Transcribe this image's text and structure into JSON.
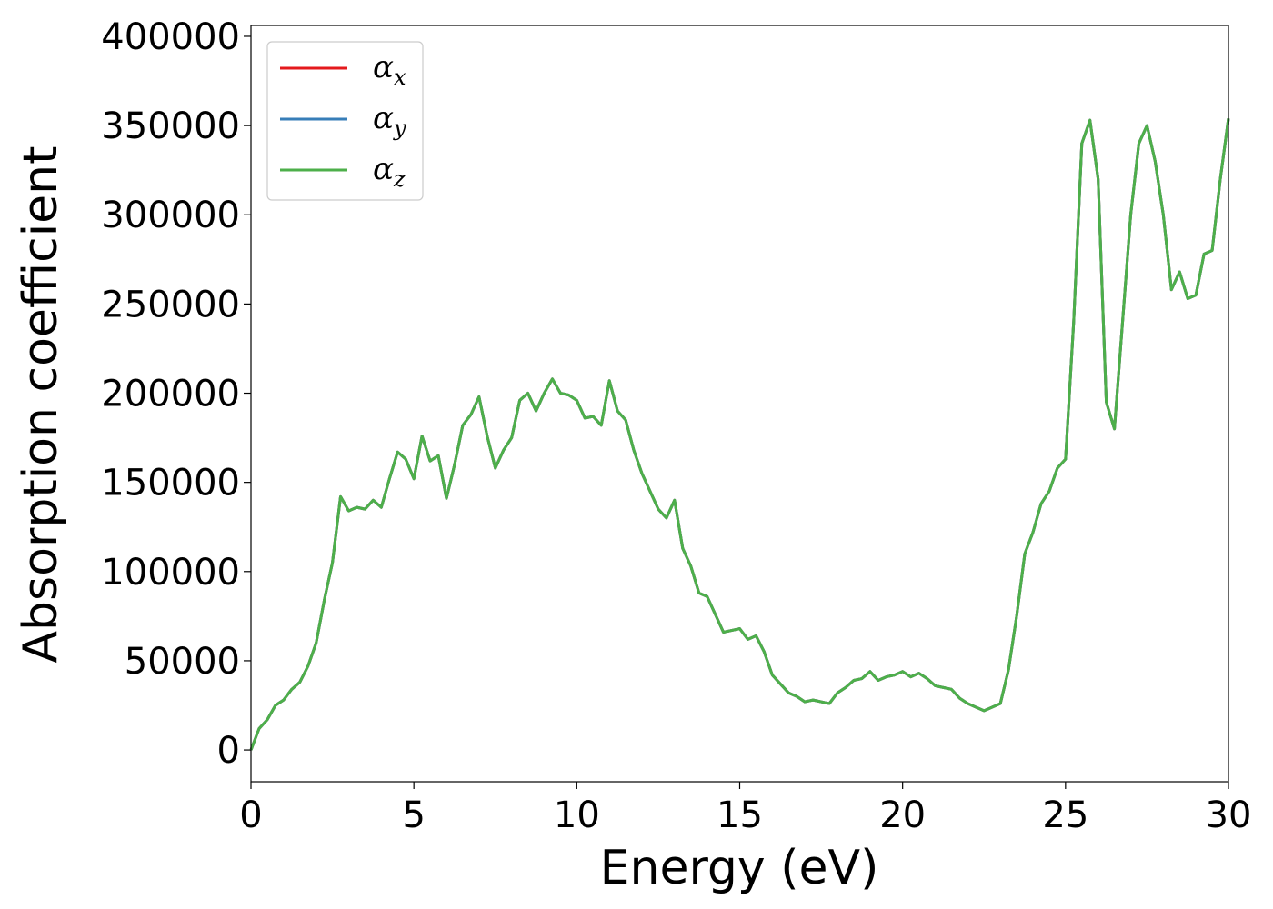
{
  "chart_data": {
    "type": "line",
    "xlabel": "Energy (eV)",
    "ylabel": "Absorption coefficient",
    "x": [
      0,
      0.25,
      0.5,
      0.75,
      1,
      1.25,
      1.5,
      1.75,
      2,
      2.25,
      2.5,
      2.75,
      3,
      3.25,
      3.5,
      3.75,
      4,
      4.25,
      4.5,
      4.75,
      5,
      5.25,
      5.5,
      5.75,
      6,
      6.25,
      6.5,
      6.75,
      7,
      7.25,
      7.5,
      7.75,
      8,
      8.25,
      8.5,
      8.75,
      9,
      9.25,
      9.5,
      9.75,
      10,
      10.25,
      10.5,
      10.75,
      11,
      11.25,
      11.5,
      11.75,
      12,
      12.25,
      12.5,
      12.75,
      13,
      13.25,
      13.5,
      13.75,
      14,
      14.25,
      14.5,
      14.75,
      15,
      15.25,
      15.5,
      15.75,
      16,
      16.25,
      16.5,
      16.75,
      17,
      17.25,
      17.5,
      17.75,
      18,
      18.25,
      18.5,
      18.75,
      19,
      19.25,
      19.5,
      19.75,
      20,
      20.25,
      20.5,
      20.75,
      21,
      21.25,
      21.5,
      21.75,
      22,
      22.25,
      22.5,
      22.75,
      23,
      23.25,
      23.5,
      23.75,
      24,
      24.25,
      24.5,
      24.75,
      25,
      25.25,
      25.5,
      25.75,
      26,
      26.25,
      26.5,
      26.75,
      27,
      27.25,
      27.5,
      27.75,
      28,
      28.25,
      28.5,
      28.75,
      29,
      29.25,
      29.5,
      29.75,
      30
    ],
    "series": [
      {
        "name": "αx",
        "color": "#e41a1c",
        "values": [
          0,
          12000,
          17000,
          25000,
          28000,
          34000,
          38000,
          47000,
          60000,
          84000,
          105000,
          142000,
          134000,
          136000,
          135000,
          140000,
          136000,
          152000,
          167000,
          163000,
          152000,
          176000,
          162000,
          165000,
          141000,
          160000,
          182000,
          188000,
          198000,
          176000,
          158000,
          168000,
          175000,
          196000,
          200000,
          190000,
          200000,
          208000,
          200000,
          199000,
          196000,
          186000,
          187000,
          182000,
          207000,
          190000,
          185000,
          168000,
          155000,
          145000,
          135000,
          130000,
          140000,
          113000,
          103000,
          88000,
          86000,
          76000,
          66000,
          67000,
          68000,
          62000,
          64000,
          55000,
          42000,
          37000,
          32000,
          30000,
          27000,
          28000,
          27000,
          26000,
          32000,
          35000,
          39000,
          40000,
          44000,
          39000,
          41000,
          42000,
          44000,
          41000,
          43000,
          40000,
          36000,
          35000,
          34000,
          29000,
          26000,
          24000,
          22000,
          24000,
          26000,
          45000,
          75000,
          110000,
          122000,
          138000,
          145000,
          158000,
          163000,
          240000,
          340000,
          353000,
          320000,
          195000,
          180000,
          240000,
          300000,
          340000,
          350000,
          330000,
          300000,
          258000,
          268000,
          253000,
          255000,
          278000,
          280000,
          320000,
          354000
        ]
      },
      {
        "name": "αy",
        "color": "#377eb8",
        "values": [
          0,
          12000,
          17000,
          25000,
          28000,
          34000,
          38000,
          47000,
          60000,
          84000,
          105000,
          142000,
          134000,
          136000,
          135000,
          140000,
          136000,
          152000,
          167000,
          163000,
          152000,
          176000,
          162000,
          165000,
          141000,
          160000,
          182000,
          188000,
          198000,
          176000,
          158000,
          168000,
          175000,
          196000,
          200000,
          190000,
          200000,
          208000,
          200000,
          199000,
          196000,
          186000,
          187000,
          182000,
          207000,
          190000,
          185000,
          168000,
          155000,
          145000,
          135000,
          130000,
          140000,
          113000,
          103000,
          88000,
          86000,
          76000,
          66000,
          67000,
          68000,
          62000,
          64000,
          55000,
          42000,
          37000,
          32000,
          30000,
          27000,
          28000,
          27000,
          26000,
          32000,
          35000,
          39000,
          40000,
          44000,
          39000,
          41000,
          42000,
          44000,
          41000,
          43000,
          40000,
          36000,
          35000,
          34000,
          29000,
          26000,
          24000,
          22000,
          24000,
          26000,
          45000,
          75000,
          110000,
          122000,
          138000,
          145000,
          158000,
          163000,
          240000,
          340000,
          353000,
          320000,
          195000,
          180000,
          240000,
          300000,
          340000,
          350000,
          330000,
          300000,
          258000,
          268000,
          253000,
          255000,
          278000,
          280000,
          320000,
          354000
        ]
      },
      {
        "name": "αz",
        "color": "#4daf4a",
        "values": [
          0,
          12000,
          17000,
          25000,
          28000,
          34000,
          38000,
          47000,
          60000,
          84000,
          105000,
          142000,
          134000,
          136000,
          135000,
          140000,
          136000,
          152000,
          167000,
          163000,
          152000,
          176000,
          162000,
          165000,
          141000,
          160000,
          182000,
          188000,
          198000,
          176000,
          158000,
          168000,
          175000,
          196000,
          200000,
          190000,
          200000,
          208000,
          200000,
          199000,
          196000,
          186000,
          187000,
          182000,
          207000,
          190000,
          185000,
          168000,
          155000,
          145000,
          135000,
          130000,
          140000,
          113000,
          103000,
          88000,
          86000,
          76000,
          66000,
          67000,
          68000,
          62000,
          64000,
          55000,
          42000,
          37000,
          32000,
          30000,
          27000,
          28000,
          27000,
          26000,
          32000,
          35000,
          39000,
          40000,
          44000,
          39000,
          41000,
          42000,
          44000,
          41000,
          43000,
          40000,
          36000,
          35000,
          34000,
          29000,
          26000,
          24000,
          22000,
          24000,
          26000,
          45000,
          75000,
          110000,
          122000,
          138000,
          145000,
          158000,
          163000,
          240000,
          340000,
          353000,
          320000,
          195000,
          180000,
          240000,
          300000,
          340000,
          350000,
          330000,
          300000,
          258000,
          268000,
          253000,
          255000,
          278000,
          280000,
          320000,
          354000
        ]
      }
    ],
    "xlim": [
      0,
      30
    ],
    "xticks": [
      0,
      5,
      10,
      15,
      20,
      25,
      30
    ],
    "ylim": [
      -17800,
      406100
    ],
    "yticks": [
      0,
      50000,
      100000,
      150000,
      200000,
      250000,
      300000,
      350000,
      400000
    ],
    "grid": false,
    "legend": "upper left"
  }
}
